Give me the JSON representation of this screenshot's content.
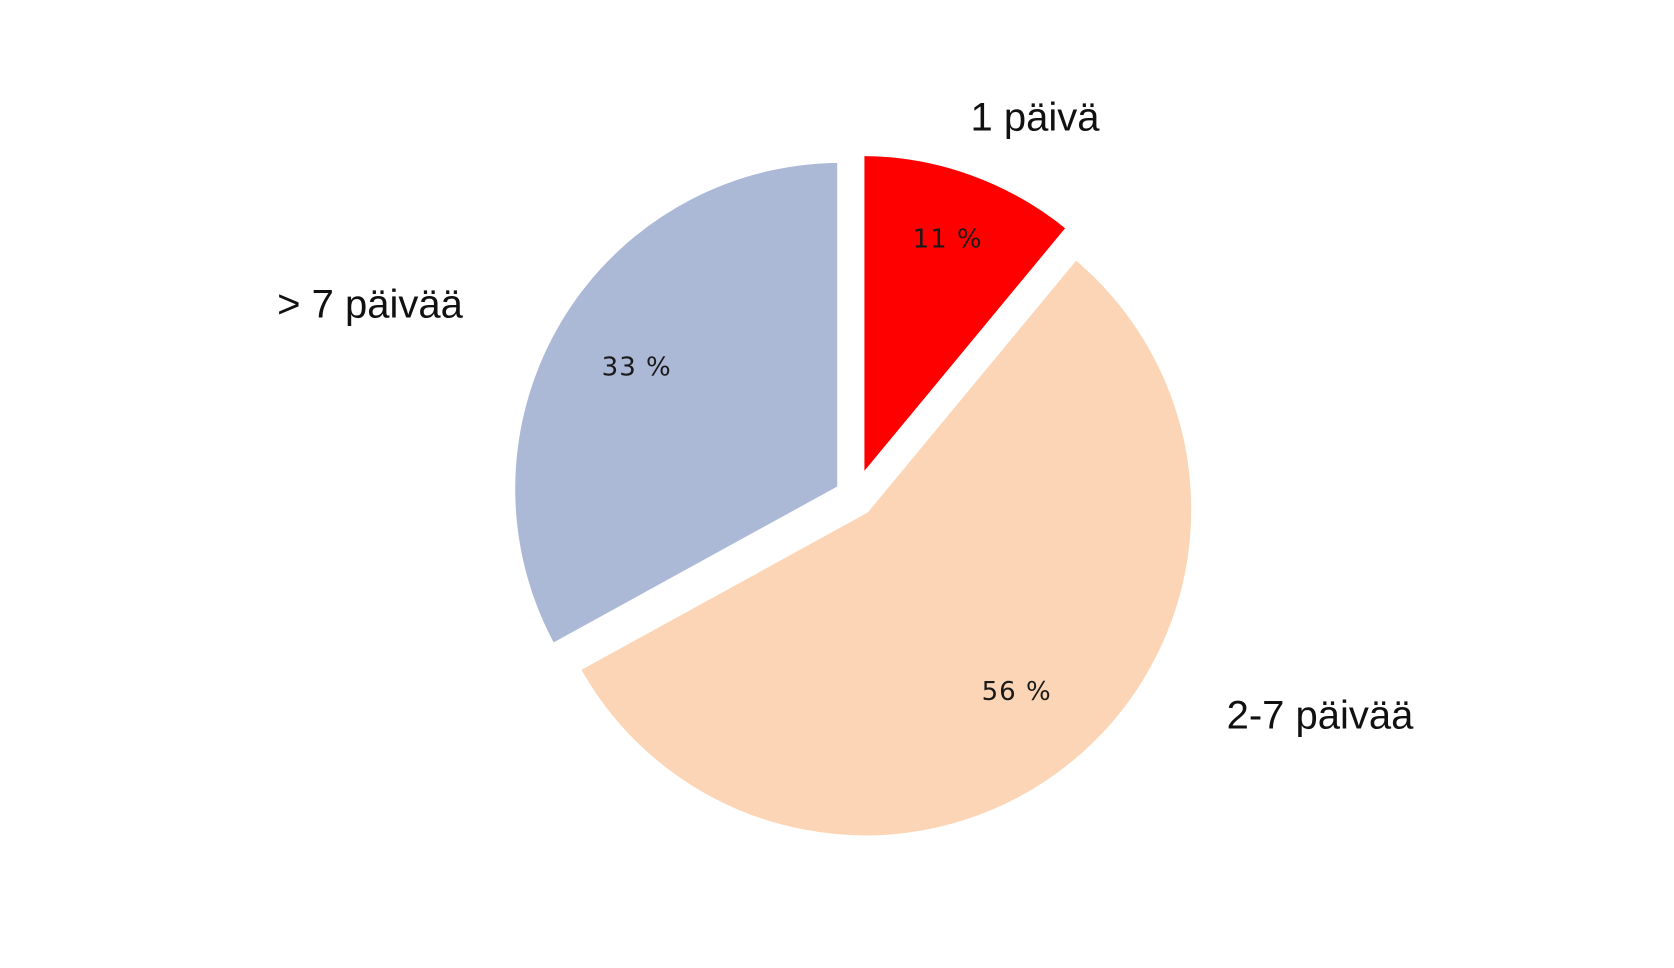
{
  "chart_data": {
    "type": "pie",
    "title": "",
    "categories": [
      "1 päivä",
      "2-7 päivää",
      "> 7 päivää"
    ],
    "values": [
      11,
      56,
      33
    ],
    "value_labels": [
      "11 %",
      "56 %",
      "33 %"
    ],
    "colors": [
      "#ff0000",
      "#fbd5b5",
      "#abb8d6"
    ],
    "exploded": true,
    "start_angle_deg": 0,
    "direction": "clockwise",
    "legend": "none"
  }
}
